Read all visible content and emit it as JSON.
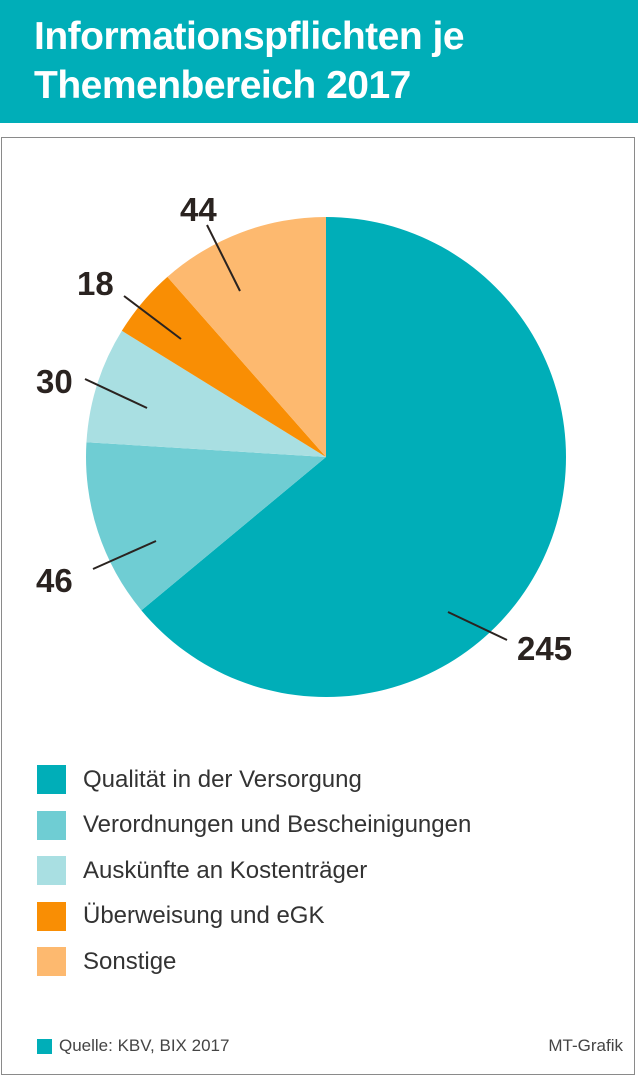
{
  "header": {
    "title_line1": "Informationspflichten je",
    "title_line2": "Themenbereich 2017",
    "bg_color": "#00aeb8"
  },
  "chart_data": {
    "type": "pie",
    "title": "Informationspflichten je Themenbereich 2017",
    "categories": [
      "Qualität in der Versorgung",
      "Verordnungen und Bescheinigungen",
      "Auskünfte an Kostenträger",
      "Überweisung und eGK",
      "Sonstige"
    ],
    "values": [
      245,
      46,
      30,
      18,
      44
    ],
    "colors": [
      "#00aeb8",
      "#6fcdd3",
      "#a9dfe2",
      "#f98e04",
      "#fdb96f"
    ],
    "start_angle_deg": 0,
    "direction": "clockwise from 12 o'clock",
    "legend_position": "bottom-left",
    "labels_shown": [
      "245",
      "46",
      "30",
      "18",
      "44"
    ]
  },
  "legend": {
    "items": [
      {
        "label": "Qualität in der Versorgung",
        "color": "#00aeb8"
      },
      {
        "label": "Verordnungen und Bescheinigungen",
        "color": "#6fcdd3"
      },
      {
        "label": "Auskünfte an Kostenträger",
        "color": "#a9dfe2"
      },
      {
        "label": "Überweisung und eGK",
        "color": "#f98e04"
      },
      {
        "label": "Sonstige",
        "color": "#fdb96f"
      }
    ]
  },
  "footer": {
    "source": "Quelle: KBV, BIX 2017",
    "source_color": "#00aeb8",
    "credit": "MT-Grafik"
  }
}
